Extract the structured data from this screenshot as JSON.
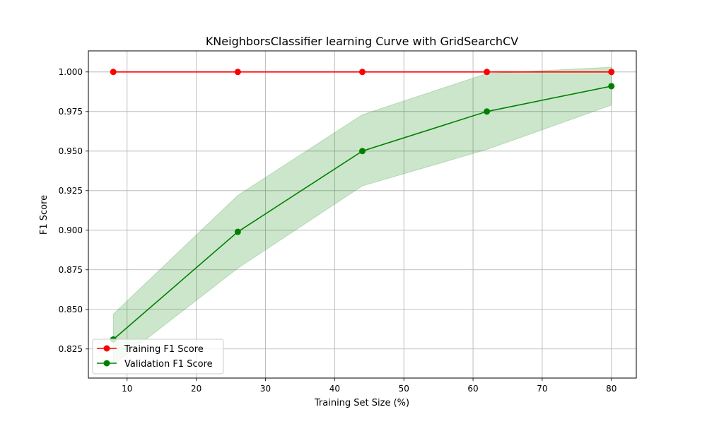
{
  "chart_data": {
    "type": "line",
    "title": "KNeighborsClassifier learning Curve with GridSearchCV",
    "xlabel": "Training Set Size (%)",
    "ylabel": "F1 Score",
    "xlim": [
      4.4,
      83.6
    ],
    "ylim": [
      0.8066,
      1.0133
    ],
    "xticks": [
      10,
      20,
      30,
      40,
      50,
      60,
      70,
      80
    ],
    "xtick_labels": [
      "10",
      "20",
      "30",
      "40",
      "50",
      "60",
      "70",
      "80"
    ],
    "yticks": [
      0.825,
      0.85,
      0.875,
      0.9,
      0.925,
      0.95,
      0.975,
      1.0
    ],
    "ytick_labels": [
      "0.825",
      "0.850",
      "0.875",
      "0.900",
      "0.925",
      "0.950",
      "0.975",
      "1.000"
    ],
    "grid": true,
    "legend_position": "lower-left",
    "x": [
      8,
      26,
      44,
      62,
      80
    ],
    "series": [
      {
        "name": "Training F1 Score",
        "color": "#ff0000",
        "values": [
          1.0,
          1.0,
          1.0,
          1.0,
          1.0
        ],
        "band_lower": [
          1.0,
          1.0,
          1.0,
          1.0,
          1.0
        ],
        "band_upper": [
          1.0,
          1.0,
          1.0,
          1.0,
          1.0
        ]
      },
      {
        "name": "Validation F1 Score",
        "color": "#008000",
        "values": [
          0.831,
          0.899,
          0.95,
          0.975,
          0.991
        ],
        "band_lower": [
          0.815,
          0.876,
          0.928,
          0.951,
          0.979
        ],
        "band_upper": [
          0.847,
          0.922,
          0.973,
          0.999,
          1.003
        ]
      }
    ]
  }
}
